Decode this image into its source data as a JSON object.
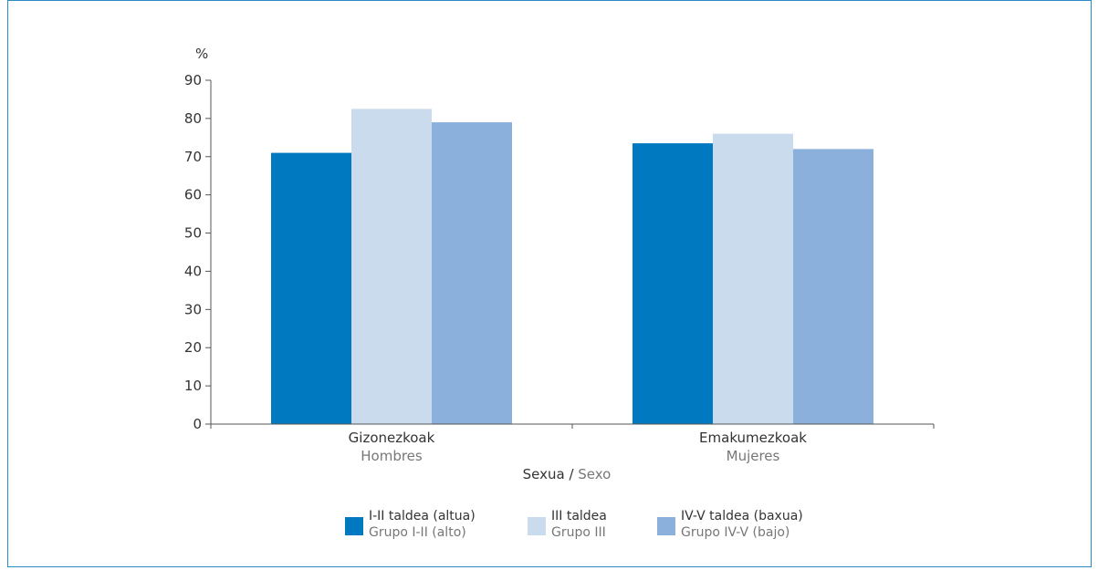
{
  "chart_data": {
    "type": "bar",
    "ylabel": "%",
    "ylim": [
      0,
      90
    ],
    "yticks": [
      0,
      10,
      20,
      30,
      40,
      50,
      60,
      70,
      80,
      90
    ],
    "categories": [
      {
        "line1": "Gizonezkoak",
        "line2": "Hombres"
      },
      {
        "line1": "Emakumezkoak",
        "line2": "Mujeres"
      }
    ],
    "series": [
      {
        "line1": "I-II taldea (altua)",
        "line2": "Grupo I-II (alto)",
        "color": "#0079c1",
        "values": [
          71,
          73.5
        ]
      },
      {
        "line1": "III taldea",
        "line2": "Grupo III",
        "color": "#cbdbee",
        "values": [
          82.5,
          76
        ]
      },
      {
        "line1": "IV-V taldea (baxua)",
        "line2": "Grupo IV-V (bajo)",
        "color": "#8cb0dc",
        "values": [
          79,
          72
        ]
      }
    ],
    "xlabel": {
      "primary": "Sexua",
      "separator": " / ",
      "secondary": "Sexo"
    }
  }
}
